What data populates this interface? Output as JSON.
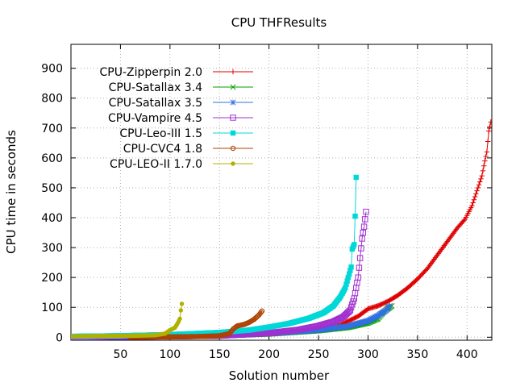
{
  "chart_data": {
    "type": "line",
    "title": "CPU THFResults",
    "xlabel": "Solution number",
    "ylabel": "CPU time in seconds",
    "xlim": [
      0,
      425
    ],
    "ylim": [
      -10,
      980
    ],
    "xticks": [
      50,
      100,
      150,
      200,
      250,
      300,
      350,
      400
    ],
    "yticks": [
      0,
      100,
      200,
      300,
      400,
      500,
      600,
      700,
      800,
      900
    ],
    "grid": true,
    "legend_position": "top-left",
    "series": [
      {
        "name": "CPU-Zipperpin 2.0",
        "color": "#e00000",
        "marker": "plus",
        "points": [
          [
            1,
            0.3
          ],
          [
            50,
            1.5
          ],
          [
            100,
            2.6
          ],
          [
            150,
            4.5
          ],
          [
            200,
            11
          ],
          [
            240,
            22
          ],
          [
            270,
            38
          ],
          [
            290,
            70
          ],
          [
            300,
            95
          ],
          [
            310,
            105
          ],
          [
            320,
            120
          ],
          [
            330,
            140
          ],
          [
            340,
            165
          ],
          [
            350,
            195
          ],
          [
            360,
            230
          ],
          [
            370,
            275
          ],
          [
            380,
            320
          ],
          [
            390,
            365
          ],
          [
            398,
            395
          ],
          [
            405,
            440
          ],
          [
            410,
            490
          ],
          [
            415,
            540
          ],
          [
            418,
            590
          ],
          [
            420,
            620
          ],
          [
            422,
            690
          ],
          [
            424,
            720
          ]
        ]
      },
      {
        "name": "CPU-Satallax 3.4",
        "color": "#00a000",
        "marker": "cross",
        "points": [
          [
            1,
            0.3
          ],
          [
            50,
            1.6
          ],
          [
            100,
            3
          ],
          [
            150,
            5
          ],
          [
            200,
            11
          ],
          [
            250,
            22
          ],
          [
            280,
            33
          ],
          [
            300,
            48
          ],
          [
            310,
            62
          ],
          [
            315,
            82
          ],
          [
            320,
            95
          ],
          [
            324,
            105
          ]
        ]
      },
      {
        "name": "CPU-Satallax 3.5",
        "color": "#3070e0",
        "marker": "star",
        "points": [
          [
            1,
            0.3
          ],
          [
            50,
            1.6
          ],
          [
            100,
            3
          ],
          [
            150,
            5
          ],
          [
            200,
            12
          ],
          [
            250,
            24
          ],
          [
            280,
            37
          ],
          [
            300,
            55
          ],
          [
            310,
            72
          ],
          [
            318,
            90
          ],
          [
            322,
            105
          ]
        ]
      },
      {
        "name": "CPU-Vampire 4.5",
        "color": "#a030d0",
        "marker": "square-open",
        "points": [
          [
            1,
            0.4
          ],
          [
            50,
            1.6
          ],
          [
            100,
            3
          ],
          [
            150,
            5
          ],
          [
            200,
            14
          ],
          [
            230,
            25
          ],
          [
            250,
            38
          ],
          [
            265,
            52
          ],
          [
            275,
            68
          ],
          [
            282,
            90
          ],
          [
            286,
            130
          ],
          [
            290,
            200
          ],
          [
            292,
            265
          ],
          [
            294,
            330
          ],
          [
            296,
            370
          ],
          [
            298,
            420
          ]
        ]
      },
      {
        "name": "CPU-Leo-III 1.5",
        "color": "#00d8d8",
        "marker": "square-filled",
        "points": [
          [
            1,
            3
          ],
          [
            50,
            5
          ],
          [
            100,
            9
          ],
          [
            150,
            16
          ],
          [
            180,
            24
          ],
          [
            200,
            34
          ],
          [
            220,
            46
          ],
          [
            240,
            63
          ],
          [
            255,
            82
          ],
          [
            265,
            105
          ],
          [
            272,
            135
          ],
          [
            277,
            165
          ],
          [
            280,
            200
          ],
          [
            283,
            235
          ],
          [
            284,
            295
          ],
          [
            286,
            310
          ],
          [
            287,
            405
          ],
          [
            288,
            535
          ]
        ]
      },
      {
        "name": "CPU-CVC4 1.8",
        "color": "#b04000",
        "marker": "circle-open",
        "points": [
          [
            60,
            0.3
          ],
          [
            100,
            1.2
          ],
          [
            130,
            2.5
          ],
          [
            150,
            5
          ],
          [
            160,
            12
          ],
          [
            164,
            28
          ],
          [
            168,
            38
          ],
          [
            175,
            43
          ],
          [
            180,
            50
          ],
          [
            185,
            60
          ],
          [
            190,
            75
          ],
          [
            193,
            88
          ]
        ]
      },
      {
        "name": "CPU-LEO-II 1.7.0",
        "color": "#b0b000",
        "marker": "circle-filled",
        "points": [
          [
            1,
            3
          ],
          [
            30,
            4
          ],
          [
            60,
            5
          ],
          [
            85,
            7
          ],
          [
            95,
            12
          ],
          [
            100,
            24
          ],
          [
            105,
            32
          ],
          [
            108,
            48
          ],
          [
            110,
            62
          ],
          [
            111,
            90
          ],
          [
            112,
            112
          ]
        ]
      }
    ]
  }
}
